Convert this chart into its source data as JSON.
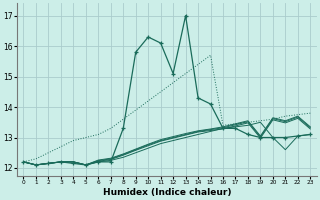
{
  "xlabel": "Humidex (Indice chaleur)",
  "bg_color": "#cceee8",
  "grid_color": "#aacccc",
  "line_color": "#1a6b5a",
  "xlim": [
    -0.5,
    23.5
  ],
  "ylim": [
    11.75,
    17.4
  ],
  "xticks": [
    0,
    1,
    2,
    3,
    4,
    5,
    6,
    7,
    8,
    9,
    10,
    11,
    12,
    13,
    14,
    15,
    16,
    17,
    18,
    19,
    20,
    21,
    22,
    23
  ],
  "yticks": [
    12,
    13,
    14,
    15,
    16,
    17
  ],
  "main_x": [
    0,
    1,
    2,
    3,
    4,
    5,
    6,
    7,
    8,
    9,
    10,
    11,
    12,
    13,
    14,
    15,
    16,
    17,
    18,
    19,
    20,
    21,
    22,
    23
  ],
  "main_y": [
    12.2,
    12.1,
    12.15,
    12.2,
    12.15,
    12.1,
    12.2,
    12.2,
    13.3,
    15.8,
    16.3,
    16.1,
    15.1,
    17.0,
    14.3,
    14.1,
    13.3,
    13.3,
    13.1,
    13.0,
    13.0,
    13.0,
    13.05,
    13.1
  ],
  "diag_x": [
    0,
    1,
    2,
    3,
    4,
    5,
    6,
    7,
    8,
    9,
    10,
    11,
    12,
    13,
    14,
    15,
    16,
    17,
    18,
    19,
    20,
    21,
    22,
    23
  ],
  "diag_y": [
    12.2,
    12.3,
    12.5,
    12.7,
    12.9,
    13.0,
    13.1,
    13.3,
    13.6,
    13.9,
    14.2,
    14.5,
    14.8,
    15.1,
    15.4,
    15.7,
    13.4,
    13.45,
    13.5,
    13.55,
    13.6,
    13.7,
    13.75,
    13.8
  ],
  "flat1_x": [
    0,
    1,
    2,
    3,
    4,
    5,
    6,
    7,
    8,
    9,
    10,
    11,
    12,
    13,
    14,
    15,
    16,
    17,
    18,
    19,
    20,
    21,
    22,
    23
  ],
  "flat1_y": [
    12.2,
    12.1,
    12.15,
    12.2,
    12.2,
    12.1,
    12.2,
    12.25,
    12.35,
    12.5,
    12.65,
    12.8,
    12.9,
    13.0,
    13.1,
    13.2,
    13.3,
    13.35,
    13.4,
    13.5,
    13.0,
    12.6,
    13.05,
    13.1
  ],
  "flat2_x": [
    0,
    1,
    2,
    3,
    4,
    5,
    6,
    7,
    8,
    9,
    10,
    11,
    12,
    13,
    14,
    15,
    16,
    17,
    18,
    19,
    20,
    21,
    22,
    23
  ],
  "flat2_y": [
    12.2,
    12.1,
    12.15,
    12.2,
    12.2,
    12.1,
    12.22,
    12.28,
    12.42,
    12.58,
    12.73,
    12.88,
    12.98,
    13.08,
    13.18,
    13.23,
    13.28,
    13.38,
    13.48,
    12.98,
    13.58,
    13.48,
    13.63,
    13.28
  ],
  "flat3_x": [
    0,
    1,
    2,
    3,
    4,
    5,
    6,
    7,
    8,
    9,
    10,
    11,
    12,
    13,
    14,
    15,
    16,
    17,
    18,
    19,
    20,
    21,
    22,
    23
  ],
  "flat3_y": [
    12.2,
    12.1,
    12.15,
    12.2,
    12.2,
    12.1,
    12.24,
    12.3,
    12.44,
    12.6,
    12.76,
    12.9,
    13.0,
    13.1,
    13.2,
    13.26,
    13.32,
    13.42,
    13.52,
    13.02,
    13.62,
    13.52,
    13.67,
    13.32
  ],
  "flat4_x": [
    0,
    1,
    2,
    3,
    4,
    5,
    6,
    7,
    8,
    9,
    10,
    11,
    12,
    13,
    14,
    15,
    16,
    17,
    18,
    19,
    20,
    21,
    22,
    23
  ],
  "flat4_y": [
    12.2,
    12.1,
    12.15,
    12.2,
    12.2,
    12.1,
    12.26,
    12.32,
    12.46,
    12.62,
    12.78,
    12.93,
    13.03,
    13.13,
    13.22,
    13.28,
    13.35,
    13.45,
    13.55,
    13.05,
    13.65,
    13.55,
    13.7,
    13.35
  ]
}
